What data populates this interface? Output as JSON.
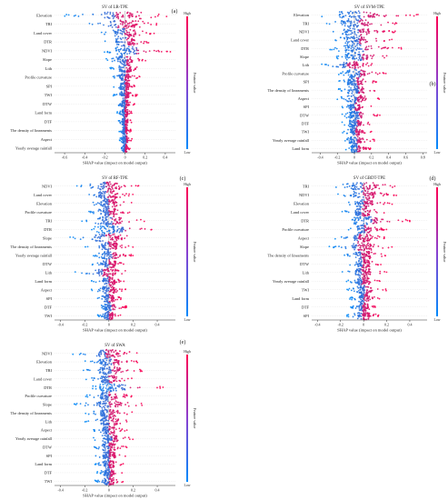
{
  "colors": {
    "high": "#ff0052",
    "low": "#008bfb",
    "grid": "#e6e6e6",
    "axis": "#333333"
  },
  "chart_data": [
    {
      "type": "scatter",
      "panel": "(a)",
      "title": "SV of LR-TPE",
      "xlabel": "SHAP value (impact on model output)",
      "colorbar_label": "Feature value",
      "colorbar_high": "High",
      "colorbar_low": "Low",
      "xlim": [
        -0.7,
        0.5
      ],
      "xticks": [
        "-0.6",
        "-0.4",
        "-0.2",
        "0",
        "0.2",
        "0.4"
      ],
      "xtick_values": [
        -0.6,
        -0.4,
        -0.2,
        0,
        0.2,
        0.4
      ],
      "features": [
        "Elevation",
        "TRI",
        "Land cover",
        "DTR",
        "NDVI",
        "Slope",
        "Lith",
        "Profile curvature",
        "SPI",
        "TWI",
        "DTW",
        "Land form",
        "DTF",
        "The density of lineaments",
        "Aspect",
        "Yearly average rainfall"
      ],
      "spread": [
        [
          -0.62,
          0.42
        ],
        [
          -0.5,
          0.35
        ],
        [
          -0.3,
          0.3
        ],
        [
          -0.25,
          0.28
        ],
        [
          -0.22,
          0.45
        ],
        [
          -0.2,
          0.22
        ],
        [
          -0.15,
          0.18
        ],
        [
          -0.15,
          0.15
        ],
        [
          -0.12,
          0.12
        ],
        [
          -0.12,
          0.12
        ],
        [
          -0.1,
          0.1
        ],
        [
          -0.08,
          0.08
        ],
        [
          -0.08,
          0.08
        ],
        [
          -0.06,
          0.06
        ],
        [
          -0.06,
          0.08
        ],
        [
          -0.05,
          0.05
        ]
      ]
    },
    {
      "type": "scatter",
      "panel": "(b)",
      "title": "SV of SVM-TPE",
      "xlabel": "SHAP value (impact on model output)",
      "colorbar_label": "Feature value",
      "colorbar_high": "High",
      "colorbar_low": "Low",
      "xlim": [
        -0.5,
        0.85
      ],
      "xticks": [
        "-0.4",
        "-0.2",
        "0",
        "0.2",
        "0.4",
        "0.6",
        "0.8"
      ],
      "xtick_values": [
        -0.4,
        -0.2,
        0,
        0.2,
        0.4,
        0.6,
        0.8
      ],
      "features": [
        "Elevation",
        "TRI",
        "NDVI",
        "Land cover",
        "DTR",
        "Slope",
        "Lith",
        "Profile curvature",
        "SPI",
        "The density of lineaments",
        "Aspect",
        "SPI",
        "DTW",
        "DTF",
        "TWI",
        "Yearly average rainfall",
        "Land form"
      ],
      "spread": [
        [
          -0.45,
          0.75
        ],
        [
          -0.4,
          0.6
        ],
        [
          -0.35,
          0.55
        ],
        [
          -0.3,
          0.5
        ],
        [
          -0.3,
          0.6
        ],
        [
          -0.25,
          0.5
        ],
        [
          -0.4,
          0.3
        ],
        [
          -0.2,
          0.4
        ],
        [
          -0.2,
          0.3
        ],
        [
          -0.2,
          0.35
        ],
        [
          -0.2,
          0.3
        ],
        [
          -0.15,
          0.2
        ],
        [
          -0.15,
          0.3
        ],
        [
          -0.15,
          0.25
        ],
        [
          -0.15,
          0.2
        ],
        [
          -0.15,
          0.25
        ],
        [
          -0.1,
          0.2
        ]
      ]
    },
    {
      "type": "scatter",
      "panel": "(c)",
      "title": "SV of RF-TPE",
      "xlabel": "SHAP value (impact on model output)",
      "colorbar_label": "Feature value",
      "colorbar_high": "High",
      "colorbar_low": "Low",
      "xlim": [
        -0.45,
        0.55
      ],
      "xticks": [
        "-0.4",
        "-0.2",
        "0",
        "0.2",
        "0.4"
      ],
      "xtick_values": [
        -0.4,
        -0.2,
        0,
        0.2,
        0.4
      ],
      "features": [
        "NDVI",
        "Land cover",
        "Elevation",
        "Profile curvature",
        "TRI",
        "DTR",
        "Slope",
        "The density of lineaments",
        "Yearly average rainfall",
        "DTW",
        "Lith",
        "Land form",
        "Aspect",
        "SPI",
        "DTF",
        "TWI"
      ],
      "spread": [
        [
          -0.3,
          0.25
        ],
        [
          -0.25,
          0.2
        ],
        [
          -0.2,
          0.2
        ],
        [
          -0.2,
          0.2
        ],
        [
          -0.25,
          0.3
        ],
        [
          -0.15,
          0.4
        ],
        [
          -0.35,
          0.3
        ],
        [
          -0.2,
          0.2
        ],
        [
          -0.15,
          0.2
        ],
        [
          -0.15,
          0.15
        ],
        [
          -0.3,
          0.2
        ],
        [
          -0.15,
          0.15
        ],
        [
          -0.15,
          0.15
        ],
        [
          -0.12,
          0.12
        ],
        [
          -0.1,
          0.15
        ],
        [
          -0.1,
          0.1
        ]
      ]
    },
    {
      "type": "scatter",
      "panel": "(d)",
      "title": "SV of GBDT-TPE",
      "xlabel": "SHAP value (impact on model output)",
      "colorbar_label": "Feature value",
      "colorbar_high": "High",
      "colorbar_low": "Low",
      "xlim": [
        -0.45,
        0.55
      ],
      "xticks": [
        "-0.4",
        "-0.2",
        "0",
        "0.2",
        "0.4"
      ],
      "xtick_values": [
        -0.4,
        -0.2,
        0,
        0.2,
        0.4
      ],
      "features": [
        "TRI",
        "NDVI",
        "Elevation",
        "Land cover",
        "DTR",
        "Profile curvature",
        "Aspect",
        "Slope",
        "The density of lineaments",
        "DTW",
        "Lith",
        "Yearly average rainfall",
        "TWI",
        "Land form",
        "DTF",
        "SPI"
      ],
      "spread": [
        [
          -0.3,
          0.35
        ],
        [
          -0.25,
          0.3
        ],
        [
          -0.2,
          0.25
        ],
        [
          -0.2,
          0.2
        ],
        [
          -0.2,
          0.4
        ],
        [
          -0.15,
          0.2
        ],
        [
          -0.25,
          0.2
        ],
        [
          -0.3,
          0.25
        ],
        [
          -0.2,
          0.2
        ],
        [
          -0.15,
          0.15
        ],
        [
          -0.2,
          0.2
        ],
        [
          -0.15,
          0.15
        ],
        [
          -0.15,
          0.2
        ],
        [
          -0.12,
          0.15
        ],
        [
          -0.12,
          0.12
        ],
        [
          -0.15,
          0.15
        ]
      ]
    },
    {
      "type": "scatter",
      "panel": "(e)",
      "title": "SV of SWA",
      "xlabel": "SHAP value (impact on model output)",
      "colorbar_label": "Feature value",
      "colorbar_high": "High",
      "colorbar_low": "Low",
      "xlim": [
        -0.45,
        0.55
      ],
      "xticks": [
        "-0.4",
        "-0.2",
        "0",
        "0.2",
        "0.4"
      ],
      "xtick_values": [
        -0.4,
        -0.2,
        0,
        0.2,
        0.4
      ],
      "features": [
        "NDVI",
        "Elevation",
        "TRI",
        "Land cover",
        "DTR",
        "Profile curvature",
        "Slope",
        "The density of lineaments",
        "Lith",
        "Aspect",
        "Yearly average rainfall",
        "DTW",
        "SPI",
        "Land form",
        "DTF",
        "TWI"
      ],
      "spread": [
        [
          -0.3,
          0.25
        ],
        [
          -0.2,
          0.25
        ],
        [
          -0.25,
          0.3
        ],
        [
          -0.2,
          0.2
        ],
        [
          -0.15,
          0.45
        ],
        [
          -0.2,
          0.2
        ],
        [
          -0.3,
          0.3
        ],
        [
          -0.2,
          0.2
        ],
        [
          -0.2,
          0.2
        ],
        [
          -0.15,
          0.15
        ],
        [
          -0.15,
          0.2
        ],
        [
          -0.15,
          0.15
        ],
        [
          -0.15,
          0.15
        ],
        [
          -0.12,
          0.12
        ],
        [
          -0.1,
          0.12
        ],
        [
          -0.12,
          0.12
        ]
      ]
    }
  ]
}
